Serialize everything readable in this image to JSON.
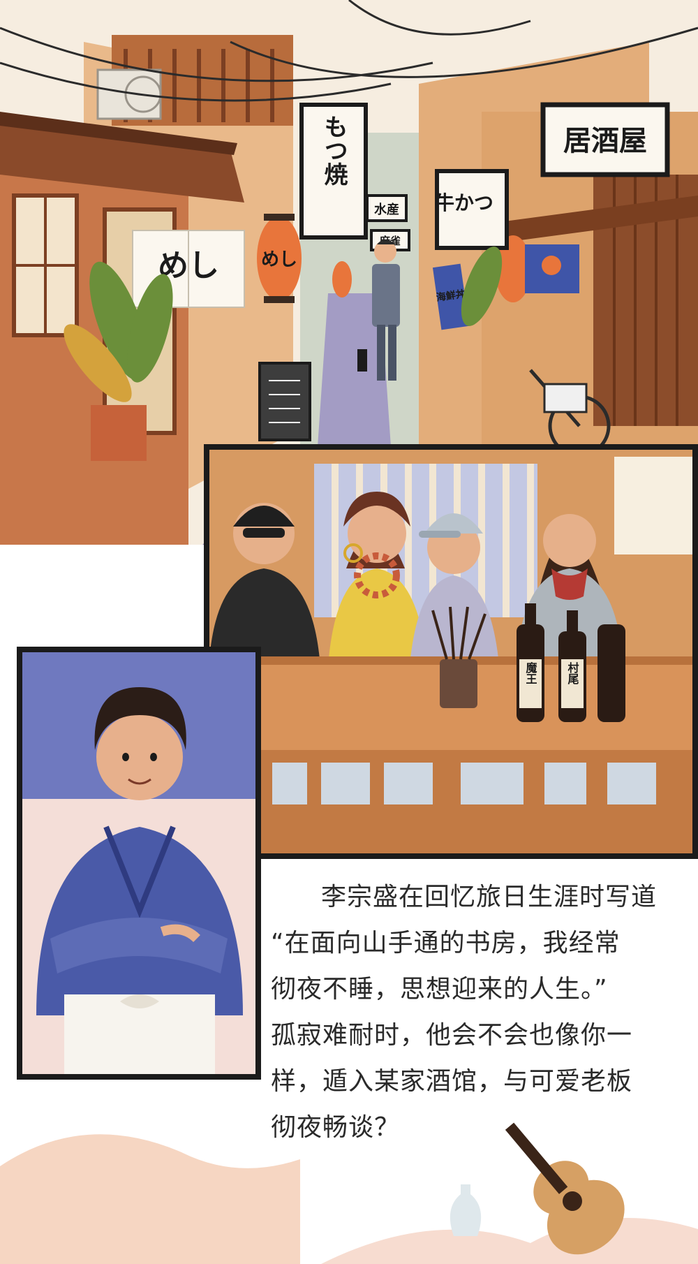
{
  "signs": {
    "izakaya": "居酒屋",
    "motsuyaki": "もつ焼",
    "gyukatsu": "牛かつ",
    "suisan": "水産",
    "mahjong": "麻雀",
    "meshi": "めし",
    "kaisendon": "海鮮丼"
  },
  "bottles": {
    "left": "魔王",
    "right": "村尾"
  },
  "caption": {
    "line1": "李宗盛在回忆旅日生涯时写道",
    "line2": "“在面向山手通的书房，我经常",
    "line3": "彻夜不睡，思想迎来的人生。”",
    "line4": "孤寂难耐时，他会不会也像你一",
    "line5": "样，遁入某家酒馆，与可爱老板",
    "line6": "彻夜畅谈？"
  },
  "colors": {
    "street_wall": "#e7b47f",
    "road": "#8f86b3",
    "counter": "#d9935a",
    "panel_border": "#1b1b1b",
    "chef_robe": "#4a5aa8"
  }
}
